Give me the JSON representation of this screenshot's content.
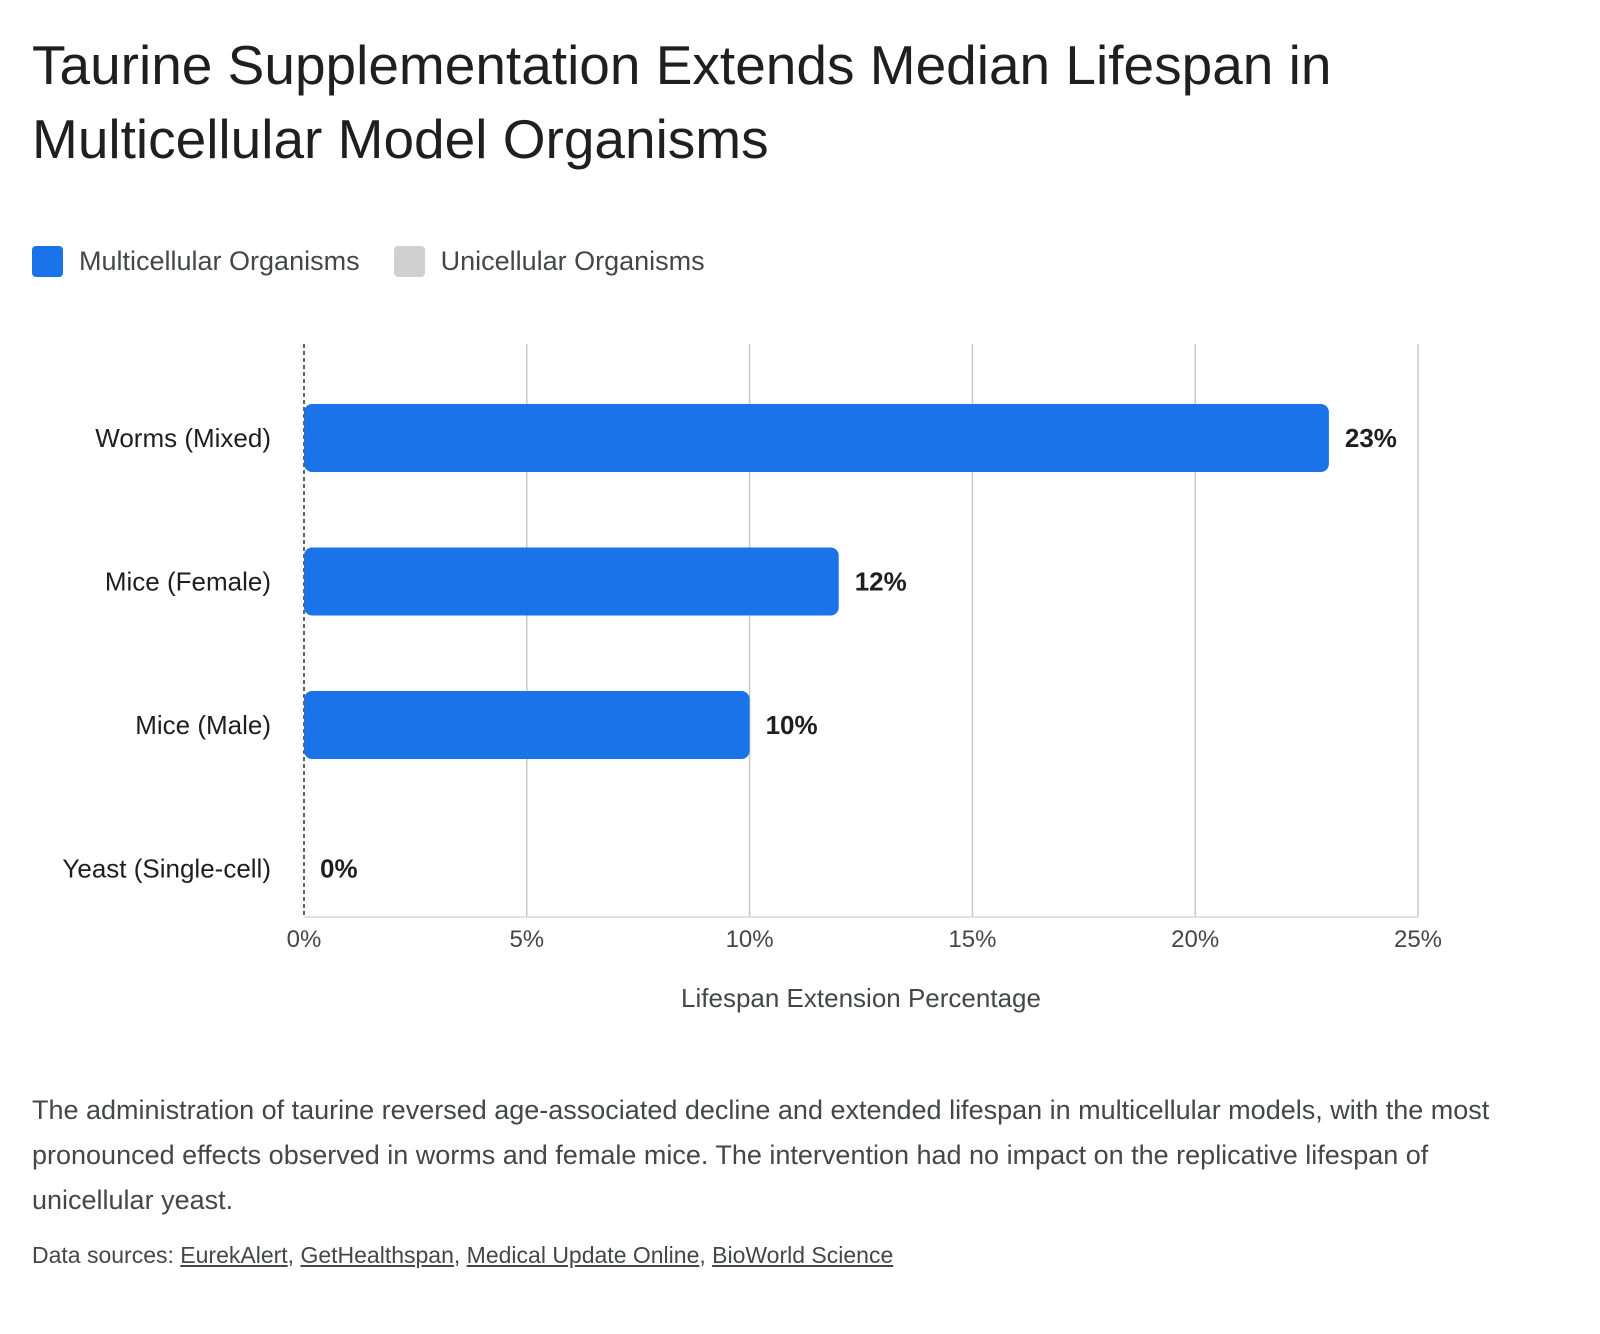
{
  "title": "Taurine Supplementation Extends Median Lifespan in Multicellular Model Organisms",
  "legend": [
    {
      "label": "Multicellular Organisms",
      "color": "#1a73e8"
    },
    {
      "label": "Unicellular Organisms",
      "color": "#d0d0d0"
    }
  ],
  "chart_data": {
    "type": "bar",
    "orientation": "horizontal",
    "categories": [
      "Worms (Mixed)",
      "Mice (Female)",
      "Mice (Male)",
      "Yeast (Single-cell)"
    ],
    "values": [
      23,
      12,
      10,
      0
    ],
    "value_labels": [
      "23%",
      "12%",
      "10%",
      "0%"
    ],
    "groups": [
      "Multicellular Organisms",
      "Multicellular Organisms",
      "Multicellular Organisms",
      "Unicellular Organisms"
    ],
    "xlabel": "Lifespan Extension Percentage",
    "ylabel": "",
    "xlim": [
      0,
      25
    ],
    "xticks": [
      0,
      5,
      10,
      15,
      20,
      25
    ],
    "xtick_labels": [
      "0%",
      "5%",
      "10%",
      "15%",
      "20%",
      "25%"
    ],
    "grid": true,
    "legend_position": "top-left"
  },
  "caption": "The administration of taurine reversed age-associated decline and extended lifespan in multicellular models, with the most pronounced effects observed in worms and female mice. The intervention had no impact on the replicative lifespan of unicellular yeast.",
  "sources": {
    "prefix": "Data sources: ",
    "links": [
      "EurekAlert",
      "GetHealthspan",
      "Medical Update Online",
      "BioWorld Science"
    ],
    "separator": ", "
  }
}
